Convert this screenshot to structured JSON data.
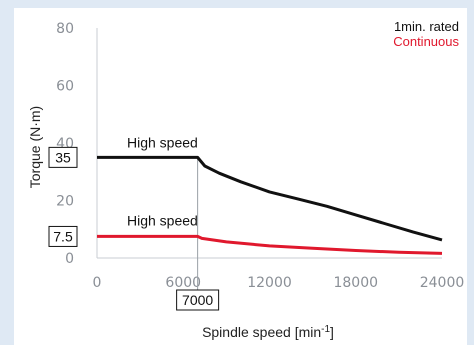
{
  "chart_data": {
    "type": "line",
    "xlabel": "Spindle speed [min",
    "xlabel_superscript": "-1",
    "xlabel_suffix": "]",
    "ylabel": "Torque (N·m)",
    "xlim": [
      0,
      24000
    ],
    "ylim": [
      0,
      80
    ],
    "x_ticks": [
      "0",
      "6000",
      "12000",
      "18000",
      "24000"
    ],
    "y_ticks": [
      "0",
      "20",
      "40",
      "60",
      "80"
    ],
    "legend_position": "top-right",
    "legend": [
      {
        "label": "1min. rated",
        "color": "#111111"
      },
      {
        "label": "Continuous",
        "color": "#e0182d"
      }
    ],
    "series": [
      {
        "label": "High speed",
        "legend": "1min. rated",
        "color": "#111111",
        "points": [
          [
            0,
            35
          ],
          [
            7000,
            35
          ],
          [
            7500,
            32
          ],
          [
            8500,
            29.5
          ],
          [
            10000,
            26.5
          ],
          [
            12000,
            23
          ],
          [
            14000,
            20.5
          ],
          [
            16000,
            18
          ],
          [
            18000,
            15
          ],
          [
            20000,
            12
          ],
          [
            22000,
            9
          ],
          [
            24000,
            6.3
          ]
        ]
      },
      {
        "label": "High speed",
        "legend": "Continuous",
        "color": "#e0182d",
        "points": [
          [
            0,
            7.5
          ],
          [
            7000,
            7.5
          ],
          [
            7300,
            6.8
          ],
          [
            9000,
            5.6
          ],
          [
            12000,
            4.2
          ],
          [
            15000,
            3.4
          ],
          [
            18000,
            2.6
          ],
          [
            21000,
            2.0
          ],
          [
            24000,
            1.6
          ]
        ]
      }
    ],
    "annotations": {
      "x_marker": {
        "value": 7000,
        "label": "7000"
      },
      "y_markers": [
        {
          "value": 35,
          "label": "35"
        },
        {
          "value": 7.5,
          "label": "7.5"
        }
      ]
    }
  }
}
